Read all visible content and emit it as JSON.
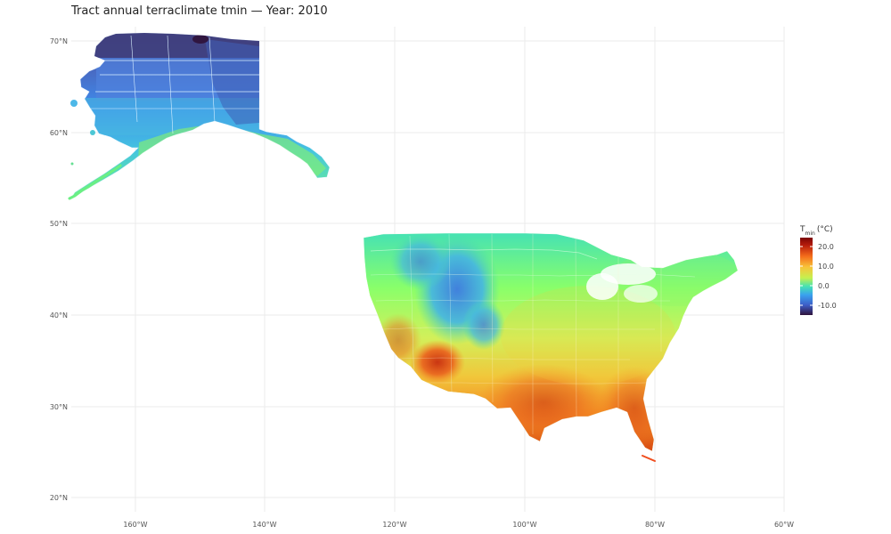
{
  "title": "Tract annual terraclimate tmin — Year: 2010",
  "axes": {
    "x_ticks": [
      "160°W",
      "140°W",
      "120°W",
      "100°W",
      "80°W",
      "60°W"
    ],
    "y_ticks": [
      "70°N",
      "60°N",
      "50°N",
      "40°N",
      "30°N",
      "20°N"
    ]
  },
  "legend": {
    "title_main": "T",
    "title_sub": "min",
    "title_unit": "(°C)",
    "ticks": [
      "20.0",
      "10.0",
      "0.0",
      "-10.0"
    ]
  },
  "colors": {
    "very_cold": "#30123b",
    "cold": "#3d5ec8",
    "cool": "#3aa2ee",
    "mild": "#46e2b3",
    "neutral": "#89ff6a",
    "warm": "#e5d436",
    "hot": "#f46d1b",
    "very_hot": "#b81d0c"
  }
}
